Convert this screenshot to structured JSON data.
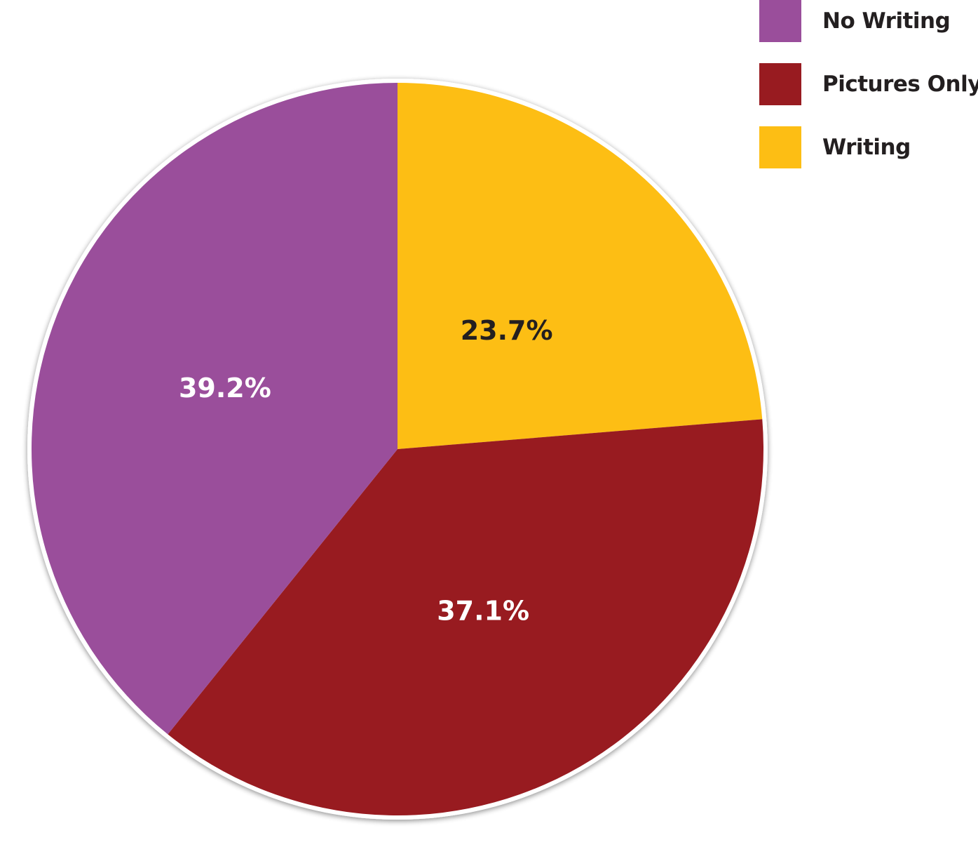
{
  "chart_data": {
    "type": "pie",
    "title": "",
    "categories": [
      "No Writing",
      "Pictures Only",
      "Writing"
    ],
    "values": [
      39.2,
      37.1,
      23.7
    ],
    "labels": [
      "39.2%",
      "37.1%",
      "23.7%"
    ],
    "colors": [
      "#9a4e9b",
      "#981b20",
      "#fdbe14"
    ],
    "label_colors": [
      "#ffffff",
      "#ffffff",
      "#231f20"
    ],
    "start_angle_deg": 0,
    "direction": "clockwise",
    "legend": {
      "placement": "top-right",
      "entries": [
        "No Writing",
        "Pictures Only",
        "Writing"
      ]
    }
  }
}
